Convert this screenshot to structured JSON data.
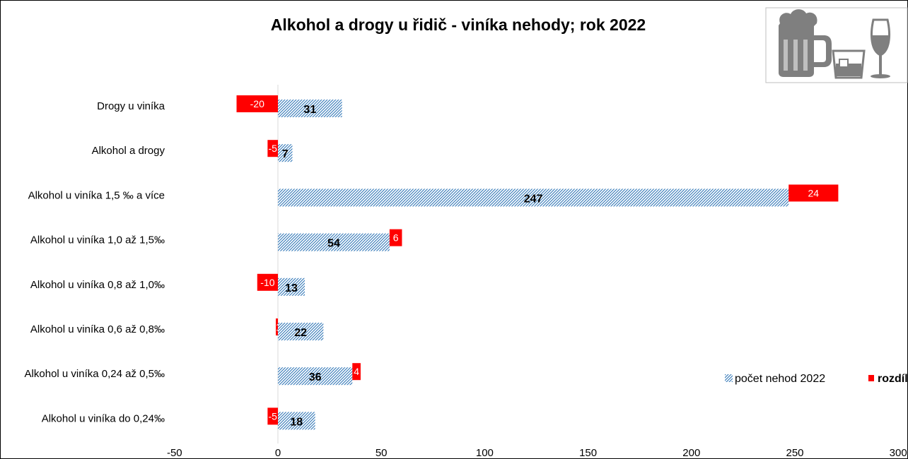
{
  "chart_data": {
    "type": "bar",
    "orientation": "horizontal",
    "title": "Alkohol a drogy u řidič - viníka nehody; rok 2022",
    "categories": [
      "Drogy u viníka",
      "Alkohol a drogy",
      "Alkohol u viníka 1,5 ‰ a více",
      "Alkohol u viníka 1,0 až 1,5‰",
      "Alkohol u viníka  0,8 až 1,0‰",
      "Alkohol u viníka  0,6 až 0,8‰",
      "Alkohol u viníka  0,24 až 0,5‰",
      "Alkohol u viníka do 0,24‰"
    ],
    "series": [
      {
        "name": "počet nehod 2022",
        "values": [
          31,
          7,
          247,
          54,
          13,
          22,
          36,
          18
        ],
        "color": "#2e75b6",
        "pattern": "diagonal-hatch"
      },
      {
        "name": "rozdíl",
        "values": [
          -20,
          -5,
          24,
          6,
          -10,
          -1,
          4,
          -5
        ],
        "color": "#ff0000"
      }
    ],
    "xlim": [
      -50,
      300
    ],
    "xticks": [
      "-50",
      "0",
      "50",
      "100",
      "150",
      "200",
      "250",
      "300"
    ],
    "xlabel": "",
    "ylabel": "",
    "grid": false,
    "legend_position": "bottom-right"
  },
  "decoration": {
    "icons": [
      "beer-mug-icon",
      "whiskey-glass-icon",
      "wine-glass-icon"
    ],
    "icon_color": "#7f7f7f"
  }
}
